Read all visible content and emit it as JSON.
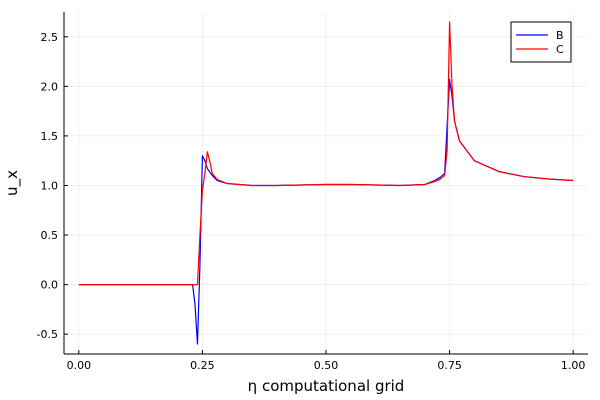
{
  "chart_data": {
    "type": "line",
    "title": "",
    "xlabel": "η computational grid",
    "ylabel": "u_x",
    "xlim": [
      -0.03,
      1.03
    ],
    "ylim": [
      -0.7,
      2.75
    ],
    "xticks": [
      0,
      0.25,
      0.5,
      0.75,
      1.0
    ],
    "xtick_labels": [
      "0.00",
      "0.25",
      "0.50",
      "0.75",
      "1.00"
    ],
    "yticks": [
      -0.5,
      0,
      0.5,
      1.0,
      1.5,
      2.0,
      2.5
    ],
    "ytick_labels": [
      "-0.5",
      "0.0",
      "0.5",
      "1.0",
      "1.5",
      "2.0",
      "2.5"
    ],
    "grid": true,
    "legend_position": "top-right",
    "series": [
      {
        "name": "B",
        "color": "#0000ff",
        "x": [
          0,
          0.23,
          0.235,
          0.24,
          0.245,
          0.25,
          0.255,
          0.26,
          0.27,
          0.28,
          0.3,
          0.35,
          0.4,
          0.45,
          0.5,
          0.55,
          0.6,
          0.65,
          0.7,
          0.72,
          0.73,
          0.74,
          0.745,
          0.75,
          0.755,
          0.76,
          0.77,
          0.8,
          0.85,
          0.9,
          0.95,
          1.0
        ],
        "y": [
          0,
          0,
          -0.2,
          -0.6,
          0.2,
          1.3,
          1.25,
          1.17,
          1.1,
          1.05,
          1.02,
          1.0,
          1.0,
          1.005,
          1.01,
          1.01,
          1.005,
          1.0,
          1.01,
          1.05,
          1.08,
          1.12,
          1.6,
          2.07,
          1.9,
          1.65,
          1.45,
          1.25,
          1.14,
          1.09,
          1.065,
          1.05
        ]
      },
      {
        "name": "C",
        "color": "#ff0000",
        "x": [
          0,
          0.23,
          0.24,
          0.245,
          0.25,
          0.255,
          0.26,
          0.265,
          0.27,
          0.28,
          0.3,
          0.35,
          0.4,
          0.45,
          0.5,
          0.55,
          0.6,
          0.65,
          0.7,
          0.72,
          0.73,
          0.74,
          0.745,
          0.75,
          0.755,
          0.76,
          0.77,
          0.8,
          0.85,
          0.9,
          0.95,
          1.0
        ],
        "y": [
          0,
          0,
          0,
          0.5,
          0.95,
          1.12,
          1.34,
          1.24,
          1.12,
          1.06,
          1.02,
          1.0,
          1.0,
          1.005,
          1.01,
          1.01,
          1.005,
          1.0,
          1.01,
          1.04,
          1.06,
          1.1,
          1.35,
          2.65,
          2.0,
          1.65,
          1.45,
          1.25,
          1.14,
          1.09,
          1.065,
          1.05
        ]
      }
    ]
  }
}
